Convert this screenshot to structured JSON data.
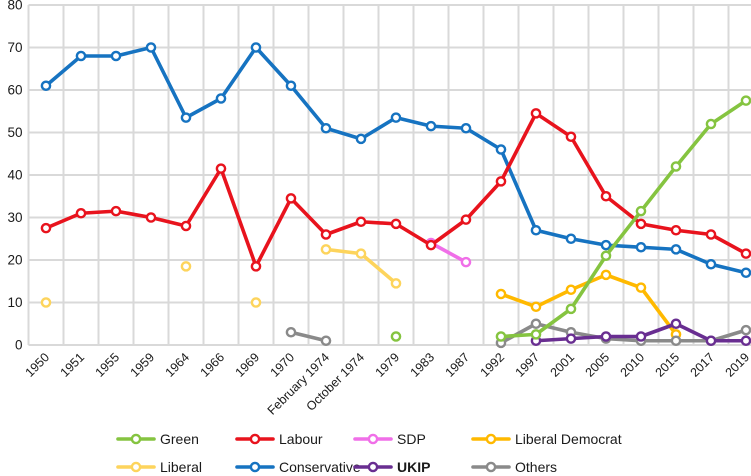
{
  "chart_data": {
    "type": "line",
    "title": "",
    "xlabel": "",
    "ylabel": "",
    "ylim": [
      0,
      80
    ],
    "yticks": [
      0,
      10,
      20,
      30,
      40,
      50,
      60,
      70,
      80
    ],
    "grid": true,
    "grid_color": "#d9d9d9",
    "legend_position": "bottom",
    "categories": [
      "1950",
      "1951",
      "1955",
      "1959",
      "1964",
      "1966",
      "1969",
      "1970",
      "February 1974",
      "October 1974",
      "1979",
      "1983",
      "1987",
      "1992",
      "1997",
      "2001",
      "2005",
      "2010",
      "2015",
      "2017",
      "2019"
    ],
    "series": [
      {
        "name": "Liberal",
        "color": "#fdd45c",
        "legend_bold": false,
        "values": [
          10,
          null,
          null,
          null,
          18.5,
          null,
          10,
          null,
          22.5,
          21.5,
          14.5,
          null,
          null,
          null,
          null,
          null,
          null,
          null,
          null,
          null,
          null
        ]
      },
      {
        "name": "SDP",
        "color": "#f06fe8",
        "legend_bold": false,
        "values": [
          null,
          null,
          null,
          null,
          null,
          null,
          null,
          null,
          null,
          null,
          null,
          24,
          19.5,
          null,
          null,
          null,
          null,
          null,
          null,
          null,
          null
        ]
      },
      {
        "name": "Liberal Democrat",
        "color": "#ffb900",
        "legend_bold": false,
        "values": [
          null,
          null,
          null,
          null,
          null,
          null,
          null,
          null,
          null,
          null,
          null,
          null,
          null,
          12,
          9,
          13,
          16.5,
          13.5,
          2.5,
          null,
          null
        ]
      },
      {
        "name": "Others",
        "color": "#8a8a8a",
        "legend_bold": false,
        "values": [
          null,
          null,
          null,
          null,
          null,
          null,
          null,
          3,
          1,
          null,
          null,
          null,
          null,
          0.5,
          5,
          3,
          1.5,
          1,
          1,
          1,
          3.5
        ]
      },
      {
        "name": "UKIP",
        "color": "#692e91",
        "legend_bold": true,
        "values": [
          null,
          null,
          null,
          null,
          null,
          null,
          null,
          null,
          null,
          null,
          null,
          null,
          null,
          null,
          1,
          1.5,
          2,
          2,
          5,
          1,
          1
        ]
      },
      {
        "name": "Conservative",
        "color": "#1673c1",
        "legend_bold": false,
        "values": [
          61,
          68,
          68,
          70,
          53.5,
          58,
          70,
          61,
          51,
          48.5,
          53.5,
          51.5,
          51,
          46,
          27,
          25,
          23.5,
          23,
          22.5,
          19,
          17
        ]
      },
      {
        "name": "Labour",
        "color": "#e8131d",
        "legend_bold": false,
        "values": [
          27.5,
          31,
          31.5,
          30,
          28,
          41.5,
          18.5,
          34.5,
          26,
          29,
          28.5,
          23.5,
          29.5,
          38.5,
          54.5,
          49,
          35,
          28.5,
          27,
          26,
          21.5
        ]
      },
      {
        "name": "Green",
        "color": "#85c440",
        "legend_bold": false,
        "values": [
          null,
          null,
          null,
          null,
          null,
          null,
          null,
          null,
          null,
          null,
          2,
          null,
          null,
          2,
          2.5,
          8.5,
          21,
          31.5,
          42,
          52,
          57.5
        ]
      }
    ],
    "legend_rows": [
      [
        "Green",
        "Labour",
        "SDP",
        "Liberal Democrat"
      ],
      [
        "Liberal",
        "Conservative",
        "UKIP",
        "Others"
      ]
    ]
  }
}
